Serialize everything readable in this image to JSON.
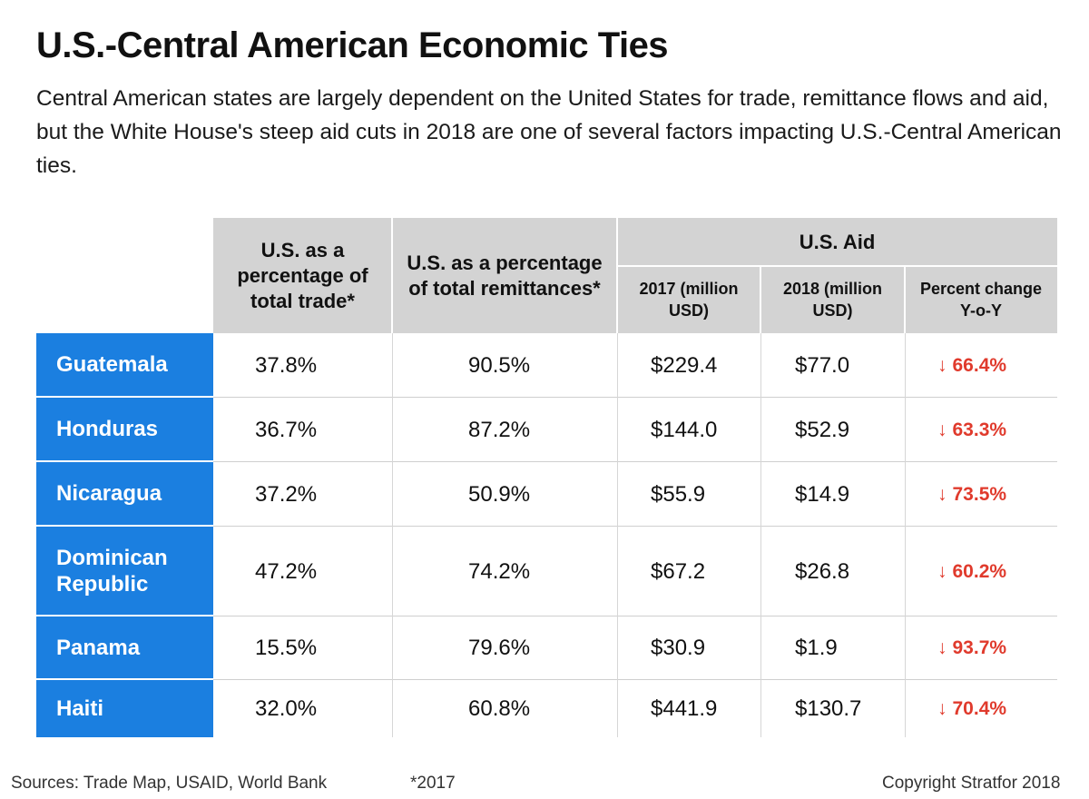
{
  "title": "U.S.-Central American Economic Ties",
  "subtitle": "Central American states are largely dependent on the United States for trade, remittance flows and aid, but the White House's steep aid cuts in 2018 are one of several factors impacting U.S.-Central American ties.",
  "headers": {
    "trade": "U.S. as a percentage of total trade*",
    "remit": "U.S. as a percentage of total remittances*",
    "aid": "U.S. Aid",
    "aid2017": "2017 (million USD)",
    "aid2018": "2018 (million USD)",
    "change": "Percent change Y-o-Y"
  },
  "colors": {
    "country_bg": "#1b7fe0",
    "header_bg": "#d3d3d3",
    "decrease": "#e03a2c"
  },
  "footer": {
    "sources": "Sources: Trade Map, USAID, World Bank",
    "note": "*2017",
    "copyright": "Copyright Stratfor 2018"
  },
  "chart_data": {
    "type": "table",
    "title": "U.S.-Central American Economic Ties",
    "columns": [
      "U.S. as a percentage of total trade*",
      "U.S. as a percentage of total remittances*",
      "2017 (million USD)",
      "2018 (million USD)",
      "Percent change Y-o-Y"
    ],
    "rows": [
      {
        "country": "Guatemala",
        "trade": "37.8%",
        "remit": "90.5%",
        "aid2017": "$229.4",
        "aid2018": "$77.0",
        "change": "66.4%"
      },
      {
        "country": "Honduras",
        "trade": "36.7%",
        "remit": "87.2%",
        "aid2017": "$144.0",
        "aid2018": "$52.9",
        "change": "63.3%"
      },
      {
        "country": "Nicaragua",
        "trade": "37.2%",
        "remit": "50.9%",
        "aid2017": "$55.9",
        "aid2018": "$14.9",
        "change": "73.5%"
      },
      {
        "country": "Dominican Republic",
        "trade": "47.2%",
        "remit": "74.2%",
        "aid2017": "$67.2",
        "aid2018": "$26.8",
        "change": "60.2%"
      },
      {
        "country": "Panama",
        "trade": "15.5%",
        "remit": "79.6%",
        "aid2017": "$30.9",
        "aid2018": "$1.9",
        "change": "93.7%"
      },
      {
        "country": "Haiti",
        "trade": "32.0%",
        "remit": "60.8%",
        "aid2017": "$441.9",
        "aid2018": "$130.7",
        "change": "70.4%"
      }
    ]
  }
}
